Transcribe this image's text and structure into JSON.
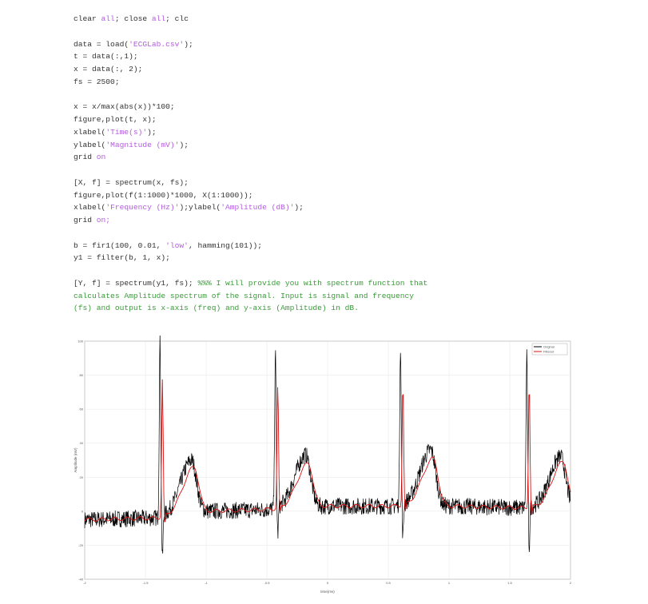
{
  "code_lines": [
    [
      {
        "t": "clear "
      },
      {
        "t": "all",
        "c": "kw"
      },
      {
        "t": "; close "
      },
      {
        "t": "all",
        "c": "kw"
      },
      {
        "t": "; clc"
      }
    ],
    [],
    [
      {
        "t": "data = load("
      },
      {
        "t": "'ECGLab.csv'",
        "c": "str"
      },
      {
        "t": ");"
      }
    ],
    [
      {
        "t": "t = data(:,1);"
      }
    ],
    [
      {
        "t": "x = data(:, 2);"
      }
    ],
    [
      {
        "t": "fs = 2500;"
      }
    ],
    [],
    [
      {
        "t": "x = x/max(abs(x))*100;"
      }
    ],
    [
      {
        "t": "figure,plot(t, x);"
      }
    ],
    [
      {
        "t": "xlabel("
      },
      {
        "t": "'Time(s)'",
        "c": "str"
      },
      {
        "t": ");"
      }
    ],
    [
      {
        "t": "ylabel("
      },
      {
        "t": "'Magnitude (mV)'",
        "c": "str"
      },
      {
        "t": ");"
      }
    ],
    [
      {
        "t": "grid "
      },
      {
        "t": "on",
        "c": "kw"
      }
    ],
    [],
    [
      {
        "t": "[X, f] = spectrum(x, fs);"
      }
    ],
    [
      {
        "t": "figure,plot(f(1:1000)*1000, X(1:1000));"
      }
    ],
    [
      {
        "t": "xlabel("
      },
      {
        "t": "'Frequency (Hz)'",
        "c": "str"
      },
      {
        "t": ");ylabel("
      },
      {
        "t": "'Amplitude (dB)'",
        "c": "str"
      },
      {
        "t": ");"
      }
    ],
    [
      {
        "t": "grid "
      },
      {
        "t": "on;",
        "c": "kw"
      }
    ],
    [],
    [
      {
        "t": "b = fir1(100, 0.01, "
      },
      {
        "t": "'low'",
        "c": "str"
      },
      {
        "t": ", hamming(101));"
      }
    ],
    [
      {
        "t": "y1 = filter(b, 1, x);"
      }
    ],
    [],
    [
      {
        "t": "[Y, f] = spectrum(y1, fs); "
      },
      {
        "t": "%%% I will provide you with spectrum function that",
        "c": "cm"
      }
    ],
    [
      {
        "t": "calculates Amplitude spectrum of the signal. Input is signal and frequency",
        "c": "cm"
      }
    ],
    [
      {
        "t": "(fs) and output is x-axis (freq) and y-axis (Amplitude) in dB.",
        "c": "cm"
      }
    ]
  ],
  "chart_data": {
    "type": "line",
    "xlabel": "time(ms)",
    "ylabel": "Amplitude (mV)",
    "xlim": [
      -2,
      2
    ],
    "ylim": [
      -40,
      100
    ],
    "xticks": [
      "-2",
      "-1.5",
      "-1",
      "-0.5",
      "0",
      "0.5",
      "1",
      "1.5",
      "2"
    ],
    "yticks": [
      "-40",
      "-20",
      "0",
      "20",
      "40",
      "60",
      "80",
      "100"
    ],
    "grid": true,
    "legend": "top-right",
    "series": [
      {
        "name": "Original",
        "color": "#000000",
        "r_peaks": [
          {
            "t": -1.38,
            "v": 100
          },
          {
            "t": -0.43,
            "v": 93
          },
          {
            "t": 0.6,
            "v": 97
          },
          {
            "t": 1.64,
            "v": 91
          }
        ],
        "s_troughs": [
          {
            "t": -1.36,
            "v": -29
          },
          {
            "t": -0.41,
            "v": -15
          },
          {
            "t": 0.62,
            "v": -17
          },
          {
            "t": 1.66,
            "v": -22
          }
        ],
        "t_waves": [
          {
            "t": -1.12,
            "v": 30
          },
          {
            "t": -0.18,
            "v": 33
          },
          {
            "t": 0.85,
            "v": 36
          },
          {
            "t": 1.92,
            "v": 32
          }
        ],
        "baseline": [
          {
            "t": -2,
            "v": -5
          },
          {
            "t": -1.4,
            "v": -4
          },
          {
            "t": -1,
            "v": 0
          },
          {
            "t": -0.5,
            "v": 1
          },
          {
            "t": 0,
            "v": 3
          },
          {
            "t": 0.5,
            "v": 3
          },
          {
            "t": 1,
            "v": 3
          },
          {
            "t": 1.6,
            "v": 2
          },
          {
            "t": 2,
            "v": 2
          }
        ],
        "noise_amplitude": 5
      },
      {
        "name": "Filtered",
        "color": "#e01010",
        "r_peaks": [
          {
            "t": -1.36,
            "v": 77
          },
          {
            "t": -0.41,
            "v": 74
          },
          {
            "t": 0.62,
            "v": 76
          },
          {
            "t": 1.66,
            "v": 77
          }
        ],
        "s_troughs": [
          {
            "t": -1.34,
            "v": -9
          },
          {
            "t": -0.39,
            "v": -2
          },
          {
            "t": 0.64,
            "v": -2
          },
          {
            "t": 1.68,
            "v": -3
          }
        ],
        "t_waves": [
          {
            "t": -1.1,
            "v": 26
          },
          {
            "t": -0.16,
            "v": 28
          },
          {
            "t": 0.87,
            "v": 31
          },
          {
            "t": 1.94,
            "v": 29
          }
        ],
        "baseline": [
          {
            "t": -2,
            "v": -5
          },
          {
            "t": -1.4,
            "v": -4
          },
          {
            "t": -1,
            "v": 0
          },
          {
            "t": -0.5,
            "v": 1
          },
          {
            "t": 0,
            "v": 3
          },
          {
            "t": 0.5,
            "v": 3
          },
          {
            "t": 1,
            "v": 3
          },
          {
            "t": 1.6,
            "v": 2
          },
          {
            "t": 2,
            "v": 2
          }
        ],
        "noise_amplitude": 1
      }
    ]
  }
}
